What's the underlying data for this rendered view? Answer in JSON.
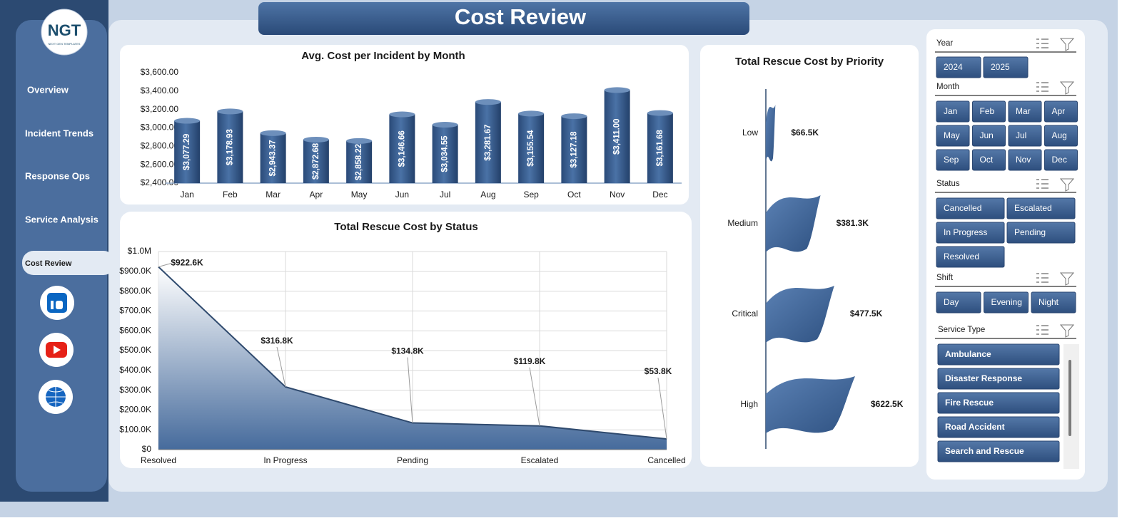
{
  "header": {
    "title": "Cost Review"
  },
  "logo": {
    "name": "NGT",
    "tagline": "NEXT GEN TEMPLATES"
  },
  "nav": {
    "items": [
      "Overview",
      "Incident Trends",
      "Response Ops",
      "Service Analysis",
      "Cost Review"
    ],
    "active": 4
  },
  "chart_data": [
    {
      "type": "bar",
      "title": "Avg. Cost per Incident by Month",
      "categories": [
        "Jan",
        "Feb",
        "Mar",
        "Apr",
        "May",
        "Jun",
        "Jul",
        "Aug",
        "Sep",
        "Oct",
        "Nov",
        "Dec"
      ],
      "values": [
        3077.29,
        3178.93,
        2943.37,
        2872.68,
        2858.22,
        3146.66,
        3034.55,
        3281.67,
        3155.54,
        3127.18,
        3411.0,
        3161.68
      ],
      "value_labels": [
        "$3,077.29",
        "$3,178.93",
        "$2,943.37",
        "$2,872.68",
        "$2,858.22",
        "$3,146.66",
        "$3,034.55",
        "$3,281.67",
        "$3,155.54",
        "$3,127.18",
        "$3,411.00",
        "$3,161.68"
      ],
      "color": "#3d6294",
      "ylim": [
        2400,
        3600
      ],
      "yticks": [
        {
          "value": 2400,
          "label": "$2,400.00"
        },
        {
          "value": 2600,
          "label": "$2,600.00"
        },
        {
          "value": 2800,
          "label": "$2,800.00"
        },
        {
          "value": 3000,
          "label": "$3,000.00"
        },
        {
          "value": 3200,
          "label": "$3,200.00"
        },
        {
          "value": 3400,
          "label": "$3,400.00"
        },
        {
          "value": 3600,
          "label": "$3,600.00"
        }
      ],
      "grid": false
    },
    {
      "type": "area",
      "title": "Total Rescue Cost by Status",
      "categories": [
        "Resolved",
        "In Progress",
        "Pending",
        "Escalated",
        "Cancelled"
      ],
      "values": [
        922600,
        316800,
        134800,
        119800,
        53800
      ],
      "value_labels": [
        "$922.6K",
        "$316.8K",
        "$134.8K",
        "$119.8K",
        "$53.8K"
      ],
      "color": "#2f4a6e",
      "ylim": [
        0,
        1000000
      ],
      "yticks": [
        {
          "value": 0,
          "label": "$0"
        },
        {
          "value": 100000,
          "label": "$100.0K"
        },
        {
          "value": 200000,
          "label": "$200.0K"
        },
        {
          "value": 300000,
          "label": "$300.0K"
        },
        {
          "value": 400000,
          "label": "$400.0K"
        },
        {
          "value": 500000,
          "label": "$500.0K"
        },
        {
          "value": 600000,
          "label": "$600.0K"
        },
        {
          "value": 700000,
          "label": "$700.0K"
        },
        {
          "value": 800000,
          "label": "$800.0K"
        },
        {
          "value": 900000,
          "label": "$900.0K"
        },
        {
          "value": 1000000,
          "label": "$1.0M"
        }
      ],
      "grid": true
    },
    {
      "type": "flag",
      "title": "Total Rescue Cost by Priority",
      "categories": [
        "Low",
        "Medium",
        "Critical",
        "High"
      ],
      "values": [
        66500,
        381300,
        477500,
        622500
      ],
      "value_labels": [
        "$66.5K",
        "$381.3K",
        "$477.5K",
        "$622.5K"
      ],
      "color": "#3d6294"
    }
  ],
  "slicers": [
    {
      "title": "Year",
      "items": [
        "2024",
        "2025"
      ]
    },
    {
      "title": "Month",
      "items": [
        "Jan",
        "Feb",
        "Mar",
        "Apr",
        "May",
        "Jun",
        "Jul",
        "Aug",
        "Sep",
        "Oct",
        "Nov",
        "Dec"
      ]
    },
    {
      "title": "Status",
      "items": [
        "Cancelled",
        "Escalated",
        "In Progress",
        "Pending",
        "Resolved"
      ]
    },
    {
      "title": "Shift",
      "items": [
        "Day",
        "Evening",
        "Night"
      ]
    },
    {
      "title": "Service Type",
      "items": [
        "Ambulance",
        "Disaster Response",
        "Fire Rescue",
        "Road Accident",
        "Search and Rescue"
      ]
    }
  ]
}
